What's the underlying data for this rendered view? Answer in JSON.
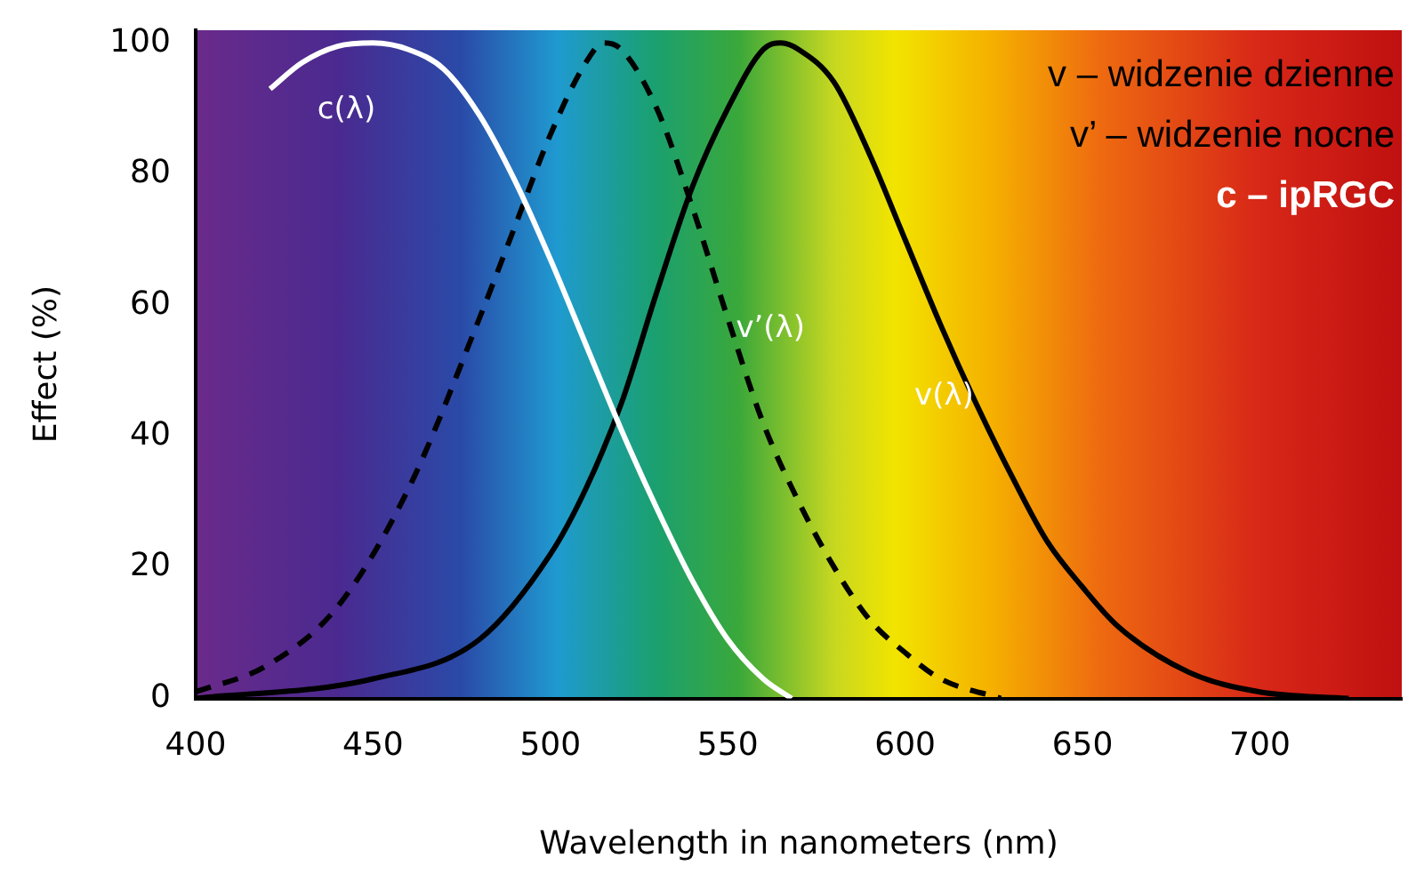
{
  "chart_data": {
    "type": "line",
    "xlabel": "Wavelength in nanometers (nm)",
    "ylabel": "Effect (%)",
    "xlim": [
      400,
      740
    ],
    "xticks": [
      400,
      450,
      500,
      550,
      600,
      650,
      700
    ],
    "ylim": [
      0,
      102
    ],
    "yticks": [
      0,
      20,
      40,
      60,
      80,
      100
    ],
    "grid": false,
    "legend": false,
    "marker": "none",
    "series": [
      {
        "name": "c(λ)",
        "color": "#ffffff",
        "line_style": "solid",
        "x": [
          421,
          430,
          440,
          450,
          460,
          470,
          480,
          490,
          500,
          510,
          520,
          530,
          540,
          550,
          560,
          568
        ],
        "values": [
          93,
          97,
          99.5,
          100,
          99,
          96,
          89,
          79,
          67,
          54,
          41,
          29,
          18,
          9,
          3,
          0
        ]
      },
      {
        "name": "v’(λ)",
        "color": "#000000",
        "line_style": "dashed",
        "x": [
          400,
          420,
          440,
          460,
          480,
          490,
          500,
          510,
          515,
          520,
          530,
          540,
          550,
          560,
          570,
          580,
          590,
          600,
          610,
          627
        ],
        "values": [
          1,
          5,
          14,
          32,
          58,
          72,
          86,
          97,
          100,
          99,
          90,
          75,
          58,
          42,
          30,
          20,
          12,
          7,
          3,
          0
        ]
      },
      {
        "name": "v(λ)",
        "color": "#000000",
        "line_style": "solid",
        "x": [
          400,
          450,
          480,
          500,
          510,
          520,
          530,
          540,
          550,
          560,
          565,
          570,
          580,
          590,
          600,
          610,
          620,
          630,
          640,
          650,
          660,
          680,
          700,
          725
        ],
        "values": [
          0,
          3,
          9,
          22,
          32,
          45,
          62,
          78,
          90,
          99,
          100,
          99,
          94,
          83,
          70,
          57,
          45,
          34,
          24,
          17,
          11,
          4,
          1,
          0
        ]
      }
    ],
    "annotations": [
      "v – widzenie dzienne",
      "v’ – widzenie nocne",
      "c – ipRGC"
    ]
  }
}
